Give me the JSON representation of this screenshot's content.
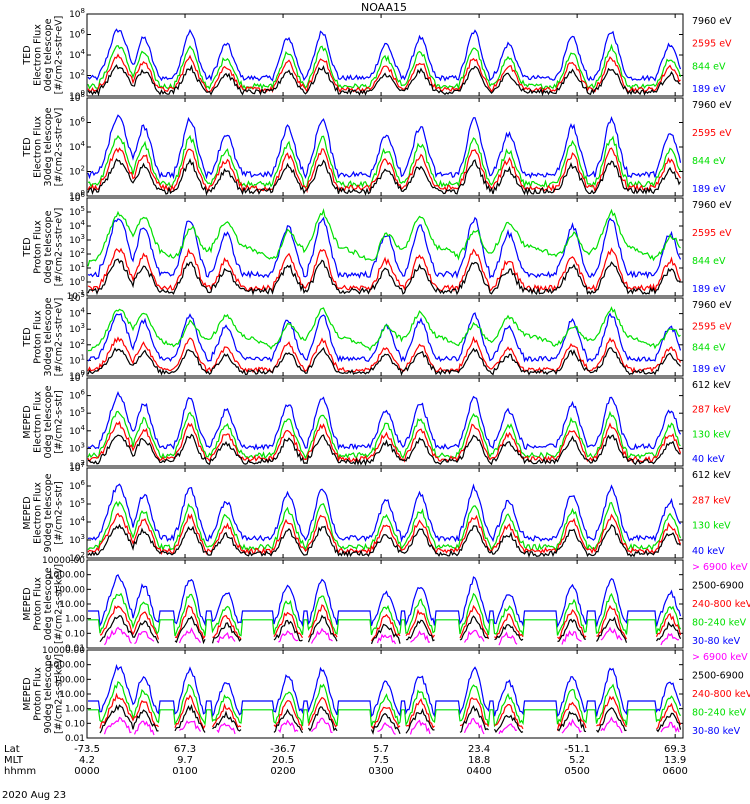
{
  "title": "NOAA15",
  "colors": {
    "black": "#000000",
    "red": "#ff0000",
    "green": "#00e000",
    "blue": "#0000ff",
    "magenta": "#ff00ff"
  },
  "chart_data": [
    {
      "type": "line",
      "scale": "log",
      "ylabel": [
        "TED",
        "Electron Flux",
        "0deg telescope",
        "[#/cm2-s-str-eV]"
      ],
      "ticks": [
        "10^0",
        "10^2",
        "10^4",
        "10^6",
        "10^8"
      ],
      "ylim": [
        1,
        100000000
      ],
      "legend": [
        {
          "label": "7960 eV",
          "color": "black"
        },
        {
          "label": "2595 eV",
          "color": "red"
        },
        {
          "label": "844 eV",
          "color": "green"
        },
        {
          "label": "189 eV",
          "color": "blue"
        }
      ]
    },
    {
      "type": "line",
      "scale": "log",
      "ylabel": [
        "TED",
        "Electron Flux",
        "30deg telescope",
        "[#/cm2-s-str-eV]"
      ],
      "ticks": [
        "10^0",
        "10^2",
        "10^4",
        "10^6",
        "10^8"
      ],
      "ylim": [
        1,
        100000000
      ],
      "legend": [
        {
          "label": "7960 eV",
          "color": "black"
        },
        {
          "label": "2595 eV",
          "color": "red"
        },
        {
          "label": "844 eV",
          "color": "green"
        },
        {
          "label": "189 eV",
          "color": "blue"
        }
      ]
    },
    {
      "type": "line",
      "scale": "log",
      "ylabel": [
        "TED",
        "Proton Flux",
        "0deg telescope",
        "[#/cm2-s-str-eV]"
      ],
      "ticks": [
        "10^-1",
        "10^0",
        "10^1",
        "10^2",
        "10^3",
        "10^4",
        "10^5",
        "10^6"
      ],
      "ylim": [
        0.1,
        1000000
      ],
      "legend": [
        {
          "label": "7960 eV",
          "color": "black"
        },
        {
          "label": "2595 eV",
          "color": "red"
        },
        {
          "label": "844 eV",
          "color": "green"
        },
        {
          "label": "189 eV",
          "color": "blue"
        }
      ]
    },
    {
      "type": "line",
      "scale": "log",
      "ylabel": [
        "TED",
        "Proton Flux",
        "30deg telescope",
        "[#/cm2-s-str-eV]"
      ],
      "ticks": [
        "10^0",
        "10^1",
        "10^2",
        "10^3",
        "10^4",
        "10^5"
      ],
      "ylim": [
        1,
        100000
      ],
      "legend": [
        {
          "label": "7960 eV",
          "color": "black"
        },
        {
          "label": "2595 eV",
          "color": "red"
        },
        {
          "label": "844 eV",
          "color": "green"
        },
        {
          "label": "189 eV",
          "color": "blue"
        }
      ]
    },
    {
      "type": "line",
      "scale": "log",
      "ylabel": [
        "MEPED",
        "Electron Flux",
        "0deg telescope",
        "[#/cm2-s-str]"
      ],
      "ticks": [
        "10^2",
        "10^3",
        "10^4",
        "10^5",
        "10^6",
        "10^7"
      ],
      "ylim": [
        100,
        10000000
      ],
      "legend": [
        {
          "label": "612 keV",
          "color": "black"
        },
        {
          "label": "287 keV",
          "color": "red"
        },
        {
          "label": "130 keV",
          "color": "green"
        },
        {
          "label": "40 keV",
          "color": "blue"
        }
      ]
    },
    {
      "type": "line",
      "scale": "log",
      "ylabel": [
        "MEPED",
        "Electron Flux",
        "90deg telescope",
        "[#/cm2-s-str]"
      ],
      "ticks": [
        "10^2",
        "10^3",
        "10^4",
        "10^5",
        "10^6",
        "10^7"
      ],
      "ylim": [
        100,
        10000000
      ],
      "legend": [
        {
          "label": "612 keV",
          "color": "black"
        },
        {
          "label": "287 keV",
          "color": "red"
        },
        {
          "label": "130 keV",
          "color": "green"
        },
        {
          "label": "40 keV",
          "color": "blue"
        }
      ]
    },
    {
      "type": "line",
      "scale": "log",
      "ylabel": [
        "MEPED",
        "Proton Flux",
        "0deg telescope",
        "[#/cm2-s-sr-keV]"
      ],
      "ticks": [
        "0.01",
        "0.10",
        "1.00",
        "10.00",
        "100.00",
        "1000.00",
        "10000.00"
      ],
      "ylim": [
        0.01,
        10000
      ],
      "legend": [
        {
          "label": "> 6900 keV",
          "color": "magenta"
        },
        {
          "label": "2500-6900",
          "color": "black"
        },
        {
          "label": "240-800 keV",
          "color": "red"
        },
        {
          "label": "80-240 keV",
          "color": "green"
        },
        {
          "label": "30-80 keV",
          "color": "blue"
        }
      ]
    },
    {
      "type": "line",
      "scale": "log",
      "ylabel": [
        "MEPED",
        "Proton Flux",
        "90deg telescope",
        "[#/cm2-s-sr-keV]"
      ],
      "ticks": [
        "0.01",
        "0.10",
        "1.00",
        "10.00",
        "100.00",
        "1000.00",
        "10000.00"
      ],
      "ylim": [
        0.01,
        10000
      ],
      "legend": [
        {
          "label": "> 6900 keV",
          "color": "magenta"
        },
        {
          "label": "2500-6900",
          "color": "black"
        },
        {
          "label": "240-800 keV",
          "color": "red"
        },
        {
          "label": "80-240 keV",
          "color": "green"
        },
        {
          "label": "30-80 keV",
          "color": "blue"
        }
      ]
    }
  ],
  "xaxis": {
    "row_labels": [
      "Lat",
      "MLT",
      "hhmm"
    ],
    "columns": [
      {
        "lat": "-73.5",
        "mlt": "4.2",
        "time": "0000"
      },
      {
        "lat": "67.3",
        "mlt": "9.7",
        "time": "0100"
      },
      {
        "lat": "-36.7",
        "mlt": "20.5",
        "time": "0200"
      },
      {
        "lat": "5.7",
        "mlt": "7.5",
        "time": "0300"
      },
      {
        "lat": "23.4",
        "mlt": "18.8",
        "time": "0400"
      },
      {
        "lat": "-51.1",
        "mlt": "5.2",
        "time": "0500"
      },
      {
        "lat": "69.3",
        "mlt": "13.9",
        "time": "0600"
      }
    ],
    "date": "2020 Aug 23"
  }
}
